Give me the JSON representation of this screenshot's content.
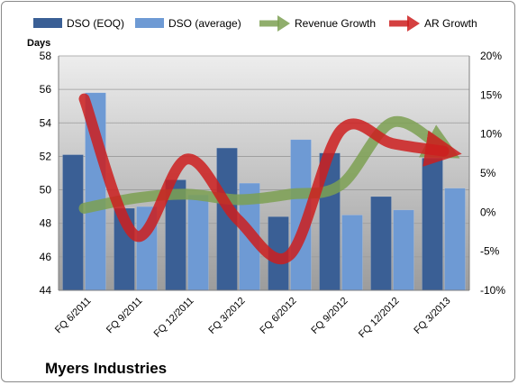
{
  "chart_data": {
    "type": "bar",
    "categories": [
      "FQ 6/2011",
      "FQ 9/2011",
      "FQ 12/2011",
      "FQ 3/2012",
      "FQ 6/2012",
      "FQ 9/2012",
      "FQ 12/2012",
      "FQ 3/2013"
    ],
    "ylabel": "Days",
    "ylim": [
      44,
      58
    ],
    "y_ticks": [
      "44",
      "46",
      "48",
      "50",
      "52",
      "54",
      "56",
      "58"
    ],
    "y2lim": [
      -10,
      20
    ],
    "y2_ticks": [
      "-10%",
      "-5%",
      "0%",
      "5%",
      "10%",
      "15%",
      "20%"
    ],
    "grid": true,
    "legend_position": "top",
    "bar_series": [
      {
        "name": "DSO (EOQ)",
        "color": "#3a5f95",
        "values": [
          52.1,
          48.9,
          50.6,
          52.5,
          48.4,
          52.2,
          49.6,
          51.9
        ]
      },
      {
        "name": "DSO (average)",
        "color": "#6e9ad4",
        "values": [
          55.8,
          49.0,
          49.7,
          50.4,
          53.0,
          48.5,
          48.8,
          50.1
        ]
      }
    ],
    "line_series": [
      {
        "name": "Revenue Growth",
        "color": "#7da052",
        "axis": "right",
        "values": [
          0.5,
          1.8,
          2.3,
          1.6,
          2.3,
          3.5,
          11.5,
          8.0
        ]
      },
      {
        "name": "AR Growth",
        "color": "#cc1e1e",
        "axis": "right",
        "values": [
          14.5,
          -3.0,
          6.8,
          -1.0,
          -5.5,
          10.5,
          8.8,
          7.8
        ]
      }
    ]
  },
  "company_name": "Myers Industries"
}
